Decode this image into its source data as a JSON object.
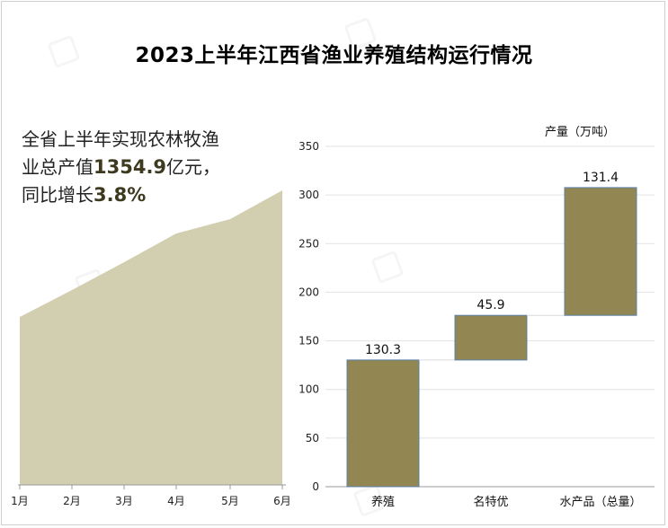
{
  "title": "2023上半年江西省渔业养殖结构运行情况",
  "summary": {
    "line1": "全省上半年实现农林牧渔",
    "line2_prefix": "业总产值",
    "line2_value": "1354.9",
    "line2_suffix": "亿元，",
    "line3_prefix": "同比增长",
    "line3_value": "3.8%"
  },
  "y_unit": "产量（万吨）",
  "colors": {
    "area_fill": "#d2cfb0",
    "bar_fill": "#928753",
    "bar_stroke": "#5b80a8",
    "grid": "#e3e3e3",
    "axis": "#999999"
  },
  "chart_data": [
    {
      "type": "area",
      "categories": [
        "1月",
        "2月",
        "3月",
        "4月",
        "5月",
        "6月"
      ],
      "values": [
        null,
        null,
        null,
        null,
        null,
        null
      ],
      "note_shape_only": true
    },
    {
      "type": "bar",
      "subtype": "waterfall",
      "categories": [
        "养殖",
        "名特优",
        "水产品（总量）"
      ],
      "values": [
        130.3,
        45.9,
        131.4
      ],
      "bases": [
        0,
        130.3,
        176.2
      ],
      "data_labels": [
        "130.3",
        "45.9",
        "131.4"
      ],
      "ylabel": "产量（万吨）",
      "ylim": [
        0,
        350
      ],
      "yticks": [
        0,
        50,
        100,
        150,
        200,
        250,
        300,
        350
      ],
      "grid": true
    }
  ]
}
